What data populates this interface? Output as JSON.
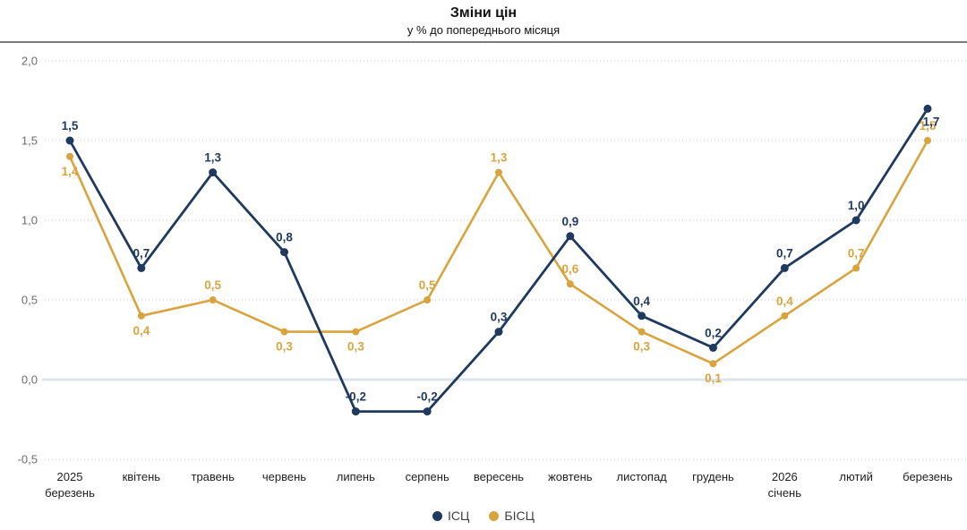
{
  "header": {
    "title": "Зміни цін",
    "subtitle": "у % до попереднього місяця"
  },
  "chart_data": {
    "type": "line",
    "title": "Зміни цін",
    "subtitle": "у % до попереднього місяця",
    "categories": [
      "2025\nберезень",
      "квітень",
      "травень",
      "червень",
      "липень",
      "серпень",
      "вересень",
      "жовтень",
      "листопад",
      "грудень",
      "2026\nсічень",
      "лютий",
      "березень"
    ],
    "series": [
      {
        "name": "ІСЦ",
        "id": "cpi",
        "color": "#1f3a5e",
        "values": [
          1.5,
          0.7,
          1.3,
          0.8,
          -0.2,
          -0.2,
          0.3,
          0.9,
          0.4,
          0.2,
          0.7,
          1.0,
          1.7
        ],
        "label_side": [
          "above",
          "above",
          "above",
          "above",
          "above",
          "above",
          "above",
          "above",
          "above",
          "above",
          "above",
          "above",
          "below-right"
        ]
      },
      {
        "name": "БІСЦ",
        "id": "core-cpi",
        "color": "#d9a43e",
        "values": [
          1.4,
          0.4,
          0.5,
          0.3,
          0.3,
          0.5,
          1.3,
          0.6,
          0.3,
          0.1,
          0.4,
          0.7,
          1.5
        ],
        "label_side": [
          "below",
          "below",
          "above",
          "below",
          "below",
          "above",
          "above",
          "above",
          "below",
          "below",
          "above",
          "above",
          "above"
        ]
      }
    ],
    "y_axis": {
      "min": -0.5,
      "max": 2.0,
      "step": 0.5,
      "ticks": [
        2.0,
        1.5,
        1.0,
        0.5,
        0.0,
        -0.5
      ],
      "tick_labels": [
        "2,0",
        "1,5",
        "1,0",
        "0,5",
        "0,0",
        "-0,5"
      ]
    },
    "decimal_separator": ",",
    "grid": "dotted-horizontal",
    "zero_line": true,
    "legend_position": "bottom-center"
  }
}
